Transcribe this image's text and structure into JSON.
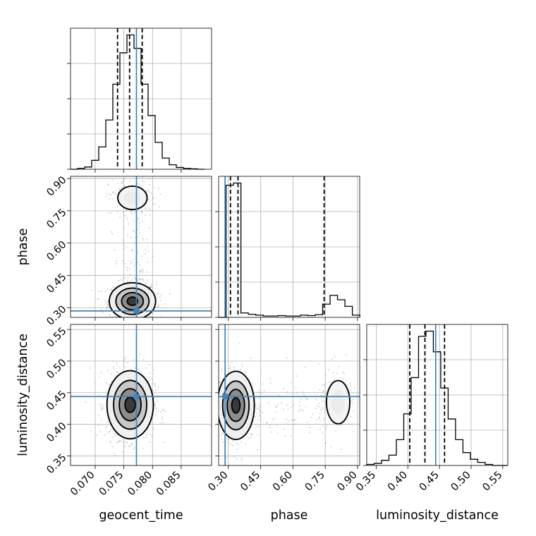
{
  "colors": {
    "truth": "#4682b4",
    "quantile": "#000000",
    "histogram": "#000000",
    "grid": "#b0b0b0"
  },
  "chart_data": {
    "type": "corner",
    "parameters": [
      {
        "name": "geocent_time",
        "range": [
          0.0657,
          0.0903
        ],
        "ticks": [
          "0.070",
          "0.075",
          "0.080",
          "0.085"
        ],
        "tick_values": [
          0.07,
          0.075,
          0.08,
          0.085
        ],
        "truth": 0.0772,
        "quantiles": [
          0.0739,
          0.076,
          0.0782
        ]
      },
      {
        "name": "phase",
        "range": [
          0.255,
          0.91
        ],
        "ticks": [
          "0.30",
          "0.45",
          "0.60",
          "0.75",
          "0.90"
        ],
        "tick_values": [
          0.3,
          0.45,
          0.6,
          0.75,
          0.9
        ],
        "truth": 0.285,
        "quantiles": [
          0.31,
          0.345,
          0.745
        ]
      },
      {
        "name": "luminosity_distance",
        "range": [
          0.335,
          0.558
        ],
        "ticks": [
          "0.35",
          "0.40",
          "0.45",
          "0.50",
          "0.55"
        ],
        "tick_values": [
          0.35,
          0.4,
          0.45,
          0.5,
          0.55
        ],
        "truth": 0.444,
        "quantiles": [
          0.403,
          0.427,
          0.458
        ]
      }
    ],
    "histograms": [
      {
        "param": "geocent_time",
        "bin_edges": [
          0.0657,
          0.06693,
          0.06816,
          0.06939,
          0.07062,
          0.07185,
          0.07308,
          0.07431,
          0.07554,
          0.07677,
          0.078,
          0.07923,
          0.08046,
          0.08169,
          0.08292,
          0.08415,
          0.08538,
          0.08661,
          0.08784,
          0.08907
        ],
        "counts": [
          0,
          2,
          5,
          20,
          50,
          110,
          190,
          260,
          300,
          270,
          190,
          120,
          60,
          25,
          10,
          4,
          2,
          1,
          0
        ]
      },
      {
        "param": "phase",
        "bin_edges": [
          0.255,
          0.2895,
          0.324,
          0.3585,
          0.393,
          0.4275,
          0.462,
          0.4965,
          0.531,
          0.5655,
          0.6,
          0.6345,
          0.669,
          0.7035,
          0.738,
          0.7725,
          0.807,
          0.8415,
          0.876,
          0.9105
        ],
        "counts": [
          0,
          300,
          305,
          10,
          7,
          5,
          3,
          3,
          4,
          3,
          3,
          5,
          4,
          6,
          30,
          50,
          40,
          25,
          5
        ]
      },
      {
        "param": "luminosity_distance",
        "bin_edges": [
          0.335,
          0.3467,
          0.3584,
          0.3701,
          0.3818,
          0.3935,
          0.4052,
          0.4169,
          0.4286,
          0.4403,
          0.452,
          0.4637,
          0.4754,
          0.4871,
          0.4988,
          0.5105,
          0.5222,
          0.5339,
          0.5456,
          0.5573
        ],
        "counts": [
          2,
          4,
          10,
          20,
          50,
          100,
          170,
          250,
          260,
          220,
          150,
          90,
          50,
          25,
          12,
          6,
          2,
          0,
          0
        ]
      }
    ],
    "joint_modes": [
      {
        "x_param": "geocent_time",
        "y_param": "phase",
        "modes": [
          {
            "center": [
              0.0765,
              0.33
            ],
            "sd": [
              0.00165,
              0.035
            ],
            "weight": 0.85
          },
          {
            "center": [
              0.0765,
              0.81
            ],
            "sd": [
              0.00165,
              0.035
            ],
            "weight": 0.15
          }
        ]
      },
      {
        "x_param": "geocent_time",
        "y_param": "luminosity_distance",
        "modes": [
          {
            "center": [
              0.0761,
              0.431
            ],
            "sd": [
              0.00165,
              0.022
            ],
            "weight": 1.0
          }
        ]
      },
      {
        "x_param": "phase",
        "y_param": "luminosity_distance",
        "modes": [
          {
            "center": [
              0.335,
              0.43
            ],
            "sd": [
              0.035,
              0.022
            ],
            "weight": 0.85
          },
          {
            "center": [
              0.81,
              0.435
            ],
            "sd": [
              0.035,
              0.022
            ],
            "weight": 0.15
          }
        ]
      }
    ],
    "grid": true
  }
}
